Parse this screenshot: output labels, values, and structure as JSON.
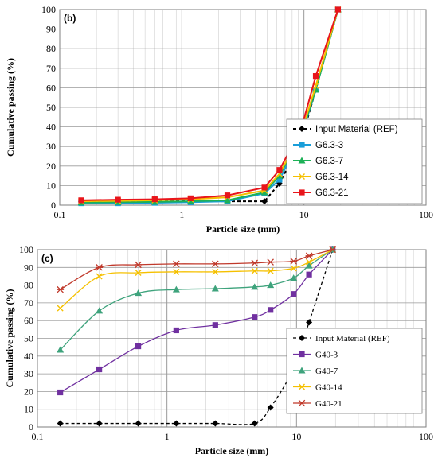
{
  "chart_data": [
    {
      "type": "line",
      "panel_label": "(b)",
      "xlabel": "Particle size (mm)",
      "ylabel": "Cumulative passing (%)",
      "x_scale": "log",
      "xlim": [
        0.1,
        100
      ],
      "ylim": [
        0,
        100
      ],
      "x_ticks": [
        "0.1",
        "1",
        "10",
        "100"
      ],
      "y_ticks": [
        "0",
        "10",
        "20",
        "30",
        "40",
        "50",
        "60",
        "70",
        "80",
        "90",
        "100"
      ],
      "grid": true,
      "legend_position": "right-middle",
      "x": [
        0.15,
        0.3,
        0.6,
        1.18,
        2.36,
        4.75,
        6.3,
        9.5,
        12.5,
        19
      ],
      "series": [
        {
          "name": "Input Material (REF)",
          "color": "#000000",
          "marker": "diamond",
          "dash": true,
          "values": [
            2,
            2,
            2,
            2,
            2,
            2,
            11,
            33,
            59,
            100
          ]
        },
        {
          "name": "G6.3-3",
          "color": "#1a9ed9",
          "marker": "square",
          "dash": false,
          "values": [
            1,
            1,
            1.2,
            1.5,
            2,
            6,
            13,
            35,
            59,
            100
          ]
        },
        {
          "name": "G6.3-7",
          "color": "#1db157",
          "marker": "triangle",
          "dash": false,
          "values": [
            1.3,
            1.5,
            1.7,
            2,
            2.5,
            6.5,
            15,
            36,
            59,
            100
          ]
        },
        {
          "name": "G6.3-14",
          "color": "#f5c000",
          "marker": "x",
          "dash": false,
          "values": [
            2,
            2.2,
            2.5,
            3,
            4,
            7.5,
            16,
            37,
            61,
            100
          ]
        },
        {
          "name": "G6.3-21",
          "color": "#e8151b",
          "marker": "square",
          "dash": false,
          "values": [
            2.5,
            2.8,
            3,
            3.5,
            5,
            9,
            18,
            39,
            66,
            100
          ]
        }
      ]
    },
    {
      "type": "line",
      "panel_label": "(c)",
      "xlabel": "Particle size (mm)",
      "ylabel": "Cumulative passing (%)",
      "x_scale": "log",
      "xlim": [
        0.1,
        100
      ],
      "ylim": [
        0,
        100
      ],
      "x_ticks": [
        "0.1",
        "1",
        "10",
        "100"
      ],
      "y_ticks": [
        "0",
        "10",
        "20",
        "30",
        "40",
        "50",
        "60",
        "70",
        "80",
        "90",
        "100"
      ],
      "grid": true,
      "legend_position": "right-middle",
      "x": [
        0.15,
        0.3,
        0.6,
        1.18,
        2.36,
        4.75,
        6.3,
        9.5,
        12.5,
        19
      ],
      "series": [
        {
          "name": "Input Material (REF)",
          "color": "#000000",
          "marker": "diamond",
          "dash": true,
          "values": [
            2,
            2,
            2,
            2,
            2,
            2,
            11,
            33,
            59,
            100
          ]
        },
        {
          "name": "G40-3",
          "color": "#7030a0",
          "marker": "square",
          "dash": false,
          "values": [
            19.5,
            32.5,
            45.5,
            54.5,
            57.5,
            62,
            66,
            75,
            86,
            100
          ]
        },
        {
          "name": "G40-7",
          "color": "#3ea37c",
          "marker": "triangle",
          "dash": false,
          "values": [
            43.5,
            65.5,
            75.5,
            77.5,
            78,
            79,
            80,
            84,
            91,
            100
          ]
        },
        {
          "name": "G40-14",
          "color": "#f5c000",
          "marker": "x",
          "dash": false,
          "values": [
            67,
            85,
            87,
            87.5,
            87.5,
            88,
            88,
            89.5,
            93,
            100
          ]
        },
        {
          "name": "G40-21",
          "color": "#c0392b",
          "marker": "star",
          "dash": false,
          "values": [
            77.5,
            90,
            91.5,
            92,
            92,
            92.5,
            93,
            93.5,
            96.5,
            100
          ]
        }
      ]
    }
  ]
}
